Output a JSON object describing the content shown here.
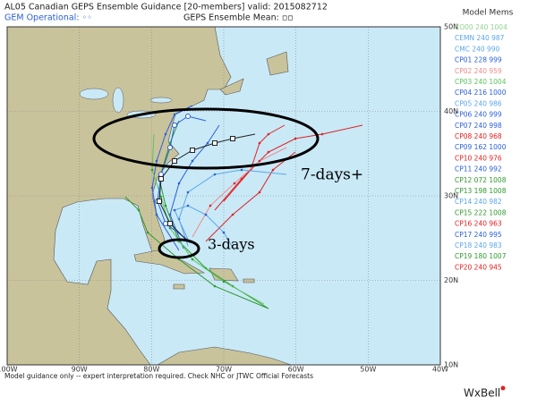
{
  "header": {
    "title": "AL05 Canadian GEPS Ensemble Guidance [20-members] valid: 2015082712",
    "operational": "GEM Operational: ◦◦",
    "mean": "GEPS Ensemble Mean: ▫▫"
  },
  "map": {
    "lon_labels": [
      "100W",
      "90W",
      "80W",
      "70W",
      "60W",
      "50W",
      "40W"
    ],
    "lat_labels": [
      "50N",
      "40N",
      "30N",
      "20N",
      "10N"
    ],
    "annotations": [
      "7-days+",
      "3-days"
    ]
  },
  "legend": {
    "title": "Model Mems",
    "entries": [
      {
        "label": "CO00 240 1004",
        "color": "#8fd48f"
      },
      {
        "label": "CEMN 240 987",
        "color": "#5aa7e8"
      },
      {
        "label": "CMC 240 990",
        "color": "#5aa7e8"
      },
      {
        "label": "CP01 228 999",
        "color": "#2a5fd8"
      },
      {
        "label": "CP02 240 959",
        "color": "#f08a8a"
      },
      {
        "label": "CP03 240 1004",
        "color": "#5cc45c"
      },
      {
        "label": "CP04 216 1000",
        "color": "#2a5fd8"
      },
      {
        "label": "CP05 240 986",
        "color": "#5aa7e8"
      },
      {
        "label": "CP06 240 999",
        "color": "#2a5fd8"
      },
      {
        "label": "CP07 240 998",
        "color": "#2a5fd8"
      },
      {
        "label": "CP08 240 968",
        "color": "#e02020"
      },
      {
        "label": "CP09 162 1000",
        "color": "#2a5fd8"
      },
      {
        "label": "CP10 240 976",
        "color": "#e02020"
      },
      {
        "label": "CP11 240 992",
        "color": "#2a5fd8"
      },
      {
        "label": "CP12 072 1008",
        "color": "#2e9a2e"
      },
      {
        "label": "CP13 198 1008",
        "color": "#2e9a2e"
      },
      {
        "label": "CP14 240 982",
        "color": "#5aa7e8"
      },
      {
        "label": "CP15 222 1008",
        "color": "#2e9a2e"
      },
      {
        "label": "CP16 240 963",
        "color": "#e02020"
      },
      {
        "label": "CP17 240 995",
        "color": "#2a5fd8"
      },
      {
        "label": "CP18 240 983",
        "color": "#5aa7e8"
      },
      {
        "label": "CP19 180 1007",
        "color": "#2e9a2e"
      },
      {
        "label": "CP20 240 945",
        "color": "#e02020"
      }
    ]
  },
  "footer": {
    "disclaimer": "Model guidance only -- expert interpretation required.  Check NHC or JTWC Official Forecasts",
    "brand": "WxBell"
  }
}
